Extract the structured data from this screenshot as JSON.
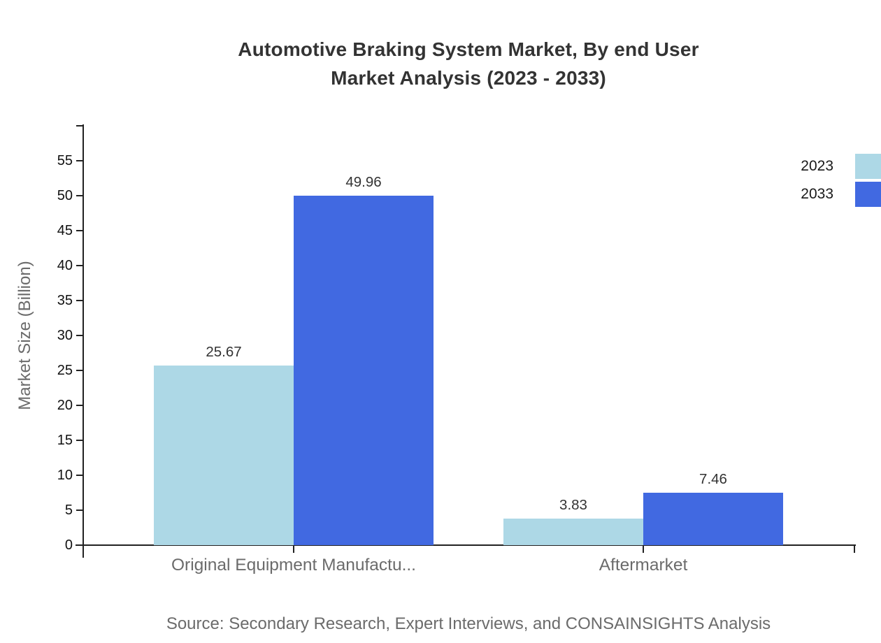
{
  "chart_data": {
    "type": "bar",
    "title": "Automotive Braking System Market, By end User Market Analysis (2023 - 2033)",
    "title_lines": [
      "Automotive Braking System Market, By end User",
      "Market Analysis (2023 - 2033)"
    ],
    "categories": [
      "Original Equipment Manufactu...",
      "Aftermarket"
    ],
    "series": [
      {
        "name": "2023",
        "color": "#ADD8E6",
        "values": [
          25.67,
          3.83
        ]
      },
      {
        "name": "2033",
        "color": "#4169E1",
        "values": [
          49.96,
          7.46
        ]
      }
    ],
    "xlabel": "",
    "ylabel": "Market Size (Billion)",
    "ylim": [
      0,
      60
    ],
    "yticks": [
      0,
      5,
      10,
      15,
      20,
      25,
      30,
      35,
      40,
      45,
      50,
      55
    ],
    "grid": false,
    "legend_position": "top-right",
    "value_labels": true
  },
  "footer": {
    "source_text": "Source: Secondary Research, Expert Interviews, and CONSAINSIGHTS Analysis"
  },
  "colors": {
    "title_text": "#333333",
    "axis_line": "#222222",
    "tick_label": "#111111",
    "muted_text": "#6b6b6b",
    "series_2023": "#ADD8E6",
    "series_2033": "#4169E1",
    "background": "#ffffff"
  }
}
